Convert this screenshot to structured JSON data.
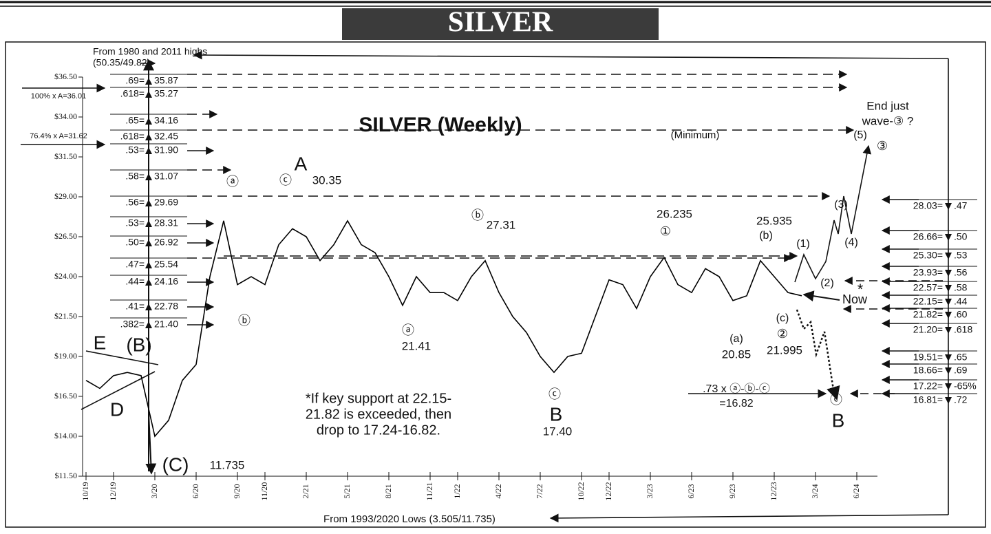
{
  "chart_data": {
    "type": "line",
    "title": "SILVER",
    "subtitle": "SILVER (Weekly)",
    "x": [
      0,
      1,
      2,
      3,
      4,
      5,
      6,
      7,
      8,
      9,
      10,
      11,
      12,
      13,
      14,
      15,
      16,
      17,
      18,
      19,
      20,
      21,
      22,
      23,
      24,
      25,
      26,
      27,
      28,
      29,
      30,
      31,
      32,
      33,
      34,
      35,
      36,
      37,
      38,
      39,
      40,
      41,
      42,
      43,
      44,
      45,
      46,
      47,
      48,
      49,
      50,
      51,
      52
    ],
    "series": [
      {
        "color": "#000000",
        "values": [
          17.5,
          17.0,
          17.8,
          18.0,
          17.8,
          14.0,
          15.0,
          17.5,
          18.5,
          24.0,
          27.5,
          23.5,
          24.0,
          23.5,
          26.0,
          27.0,
          26.5,
          25.0,
          26.0,
          27.5,
          26.0,
          25.5,
          24.0,
          22.2,
          24.0,
          23.0,
          23.0,
          22.5,
          24.0,
          25.0,
          23.0,
          21.5,
          20.5,
          19.0,
          18.0,
          19.0,
          19.2,
          21.5,
          23.8,
          23.5,
          22.0,
          24.0,
          25.2,
          23.5,
          23.0,
          24.5,
          24.0,
          22.5,
          22.8,
          25.0,
          24.0,
          23.0,
          22.8
        ]
      }
    ],
    "xlim": [
      -0.25,
      57.5
    ],
    "xticks": [
      {
        "value": 0,
        "label": "10/19"
      },
      {
        "value": 2,
        "label": "12/19"
      },
      {
        "value": 5,
        "label": "3/20"
      },
      {
        "value": 8,
        "label": "6/20"
      },
      {
        "value": 11,
        "label": "9/20"
      },
      {
        "value": 13,
        "label": "11/20"
      },
      {
        "value": 16,
        "label": "2/21"
      },
      {
        "value": 19,
        "label": "5/21"
      },
      {
        "value": 22,
        "label": "8/21"
      },
      {
        "value": 25,
        "label": "11/21"
      },
      {
        "value": 27,
        "label": "1/22"
      },
      {
        "value": 30,
        "label": "4/22"
      },
      {
        "value": 33,
        "label": "7/22"
      },
      {
        "value": 36,
        "label": "10/22"
      },
      {
        "value": 38,
        "label": "12/22"
      },
      {
        "value": 41,
        "label": "3/23"
      },
      {
        "value": 44,
        "label": "6/23"
      },
      {
        "value": 47,
        "label": "9/23"
      },
      {
        "value": 50,
        "label": "12/23"
      },
      {
        "value": 53,
        "label": "3/24"
      },
      {
        "value": 56,
        "label": "6/24"
      }
    ],
    "ylim": [
      11.5,
      36.5
    ],
    "yticks": [
      {
        "value": 11.5,
        "label": "$11.50"
      },
      {
        "value": 14,
        "label": "$14.00"
      },
      {
        "value": 16.5,
        "label": "$16.50"
      },
      {
        "value": 19,
        "label": "$19.00"
      },
      {
        "value": 21.5,
        "label": "$21.50"
      },
      {
        "value": 24,
        "label": "$24.00"
      },
      {
        "value": 26.5,
        "label": "$26.50"
      },
      {
        "value": 29,
        "label": "$29.00"
      },
      {
        "value": 31.5,
        "label": "$31.50"
      },
      {
        "value": 34,
        "label": "$34.00"
      },
      {
        "value": 36.5,
        "label": "$36.50"
      }
    ],
    "left_ladder": [
      [
        ".69=",
        "35.87"
      ],
      [
        ".618=",
        "35.27"
      ],
      [
        ".65=",
        "34.16"
      ],
      [
        ".618=",
        "32.45"
      ],
      [
        ".53=",
        "31.90"
      ],
      [
        ".58=",
        "31.07"
      ],
      [
        ".56=",
        "29.69"
      ],
      [
        ".53=",
        "28.31"
      ],
      [
        ".50=",
        "26.92"
      ],
      [
        ".47=",
        "25.54"
      ],
      [
        ".44=",
        "24.16"
      ],
      [
        ".41=",
        "22.78"
      ],
      [
        ".382=",
        "21.40"
      ]
    ],
    "right_ladder": [
      [
        "28.03=",
        ".47"
      ],
      [
        "26.66=",
        ".50"
      ],
      [
        "25.30=",
        ".53"
      ],
      [
        "23.93=",
        ".56"
      ],
      [
        "22.57=",
        ".58"
      ],
      [
        "22.15=",
        ".44"
      ],
      [
        "21.82=",
        ".60"
      ],
      [
        "21.20=",
        ".618"
      ],
      [
        "19.51=",
        ".65"
      ],
      [
        "18.66=",
        ".69"
      ],
      [
        "17.22=",
        "-65%"
      ],
      [
        "16.81=",
        ".72"
      ]
    ],
    "annotations": [
      "From 1980 and 2011 highs",
      "(50.35/49.82)",
      "100% x A=36.01",
      "76.4% x A=31.62",
      "(Minimum)",
      "End just",
      "wave-③ ?",
      "ⓐ",
      "ⓒ",
      "A",
      "30.35",
      "ⓑ",
      "ⓑ",
      "27.31",
      "ⓐ",
      "21.41",
      "ⓒ",
      "B",
      "17.40",
      "26.235",
      "①",
      "25.935",
      "(b)",
      "(1)",
      "(3)",
      "(5)",
      "③",
      "(4)",
      "(2)",
      "*",
      "Now",
      "(c)",
      "②",
      "(a)",
      "20.85",
      "21.995",
      "E",
      "(B)",
      "D",
      "(C)",
      "11.735",
      ".73 x ⓐ-ⓑ-ⓒ",
      "=16.82",
      "ⓒ",
      "B",
      "*If key support at 22.15-",
      "21.82 is exceeded, then",
      "drop to 17.24-16.82.",
      "From 1993/2020 Lows (3.505/11.735)"
    ]
  }
}
